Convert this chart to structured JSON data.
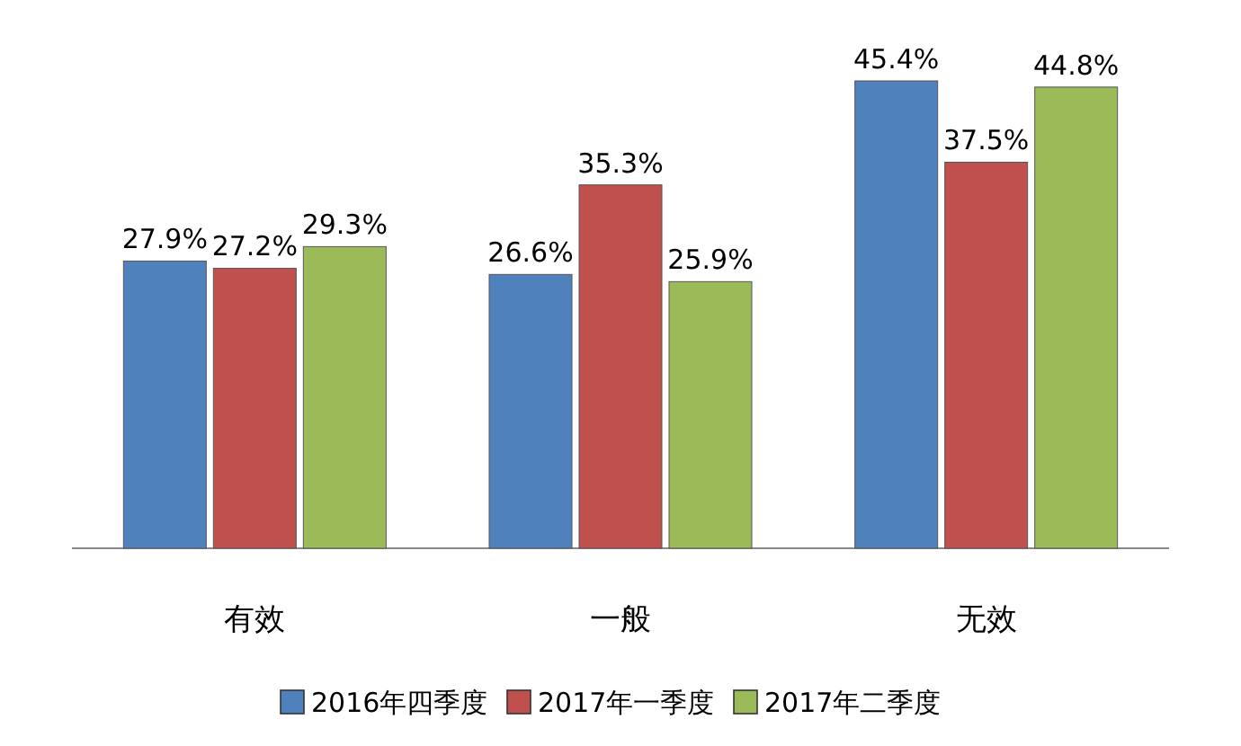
{
  "chart_data": {
    "type": "bar",
    "categories": [
      "有效",
      "一般",
      "无效"
    ],
    "series": [
      {
        "name": "2016年四季度",
        "color": "#4f81bd",
        "values": [
          27.9,
          26.6,
          45.4
        ],
        "value_labels": [
          "27.9%",
          "26.6%",
          "45.4%"
        ]
      },
      {
        "name": "2017年一季度",
        "color": "#c0504d",
        "values": [
          27.2,
          35.3,
          37.5
        ],
        "value_labels": [
          "27.2%",
          "35.3%",
          "37.5%"
        ]
      },
      {
        "name": "2017年二季度",
        "color": "#9bbb59",
        "values": [
          29.3,
          25.9,
          44.8
        ],
        "value_labels": [
          "29.3%",
          "25.9%",
          "44.8%"
        ]
      }
    ],
    "legend": "bottom"
  }
}
